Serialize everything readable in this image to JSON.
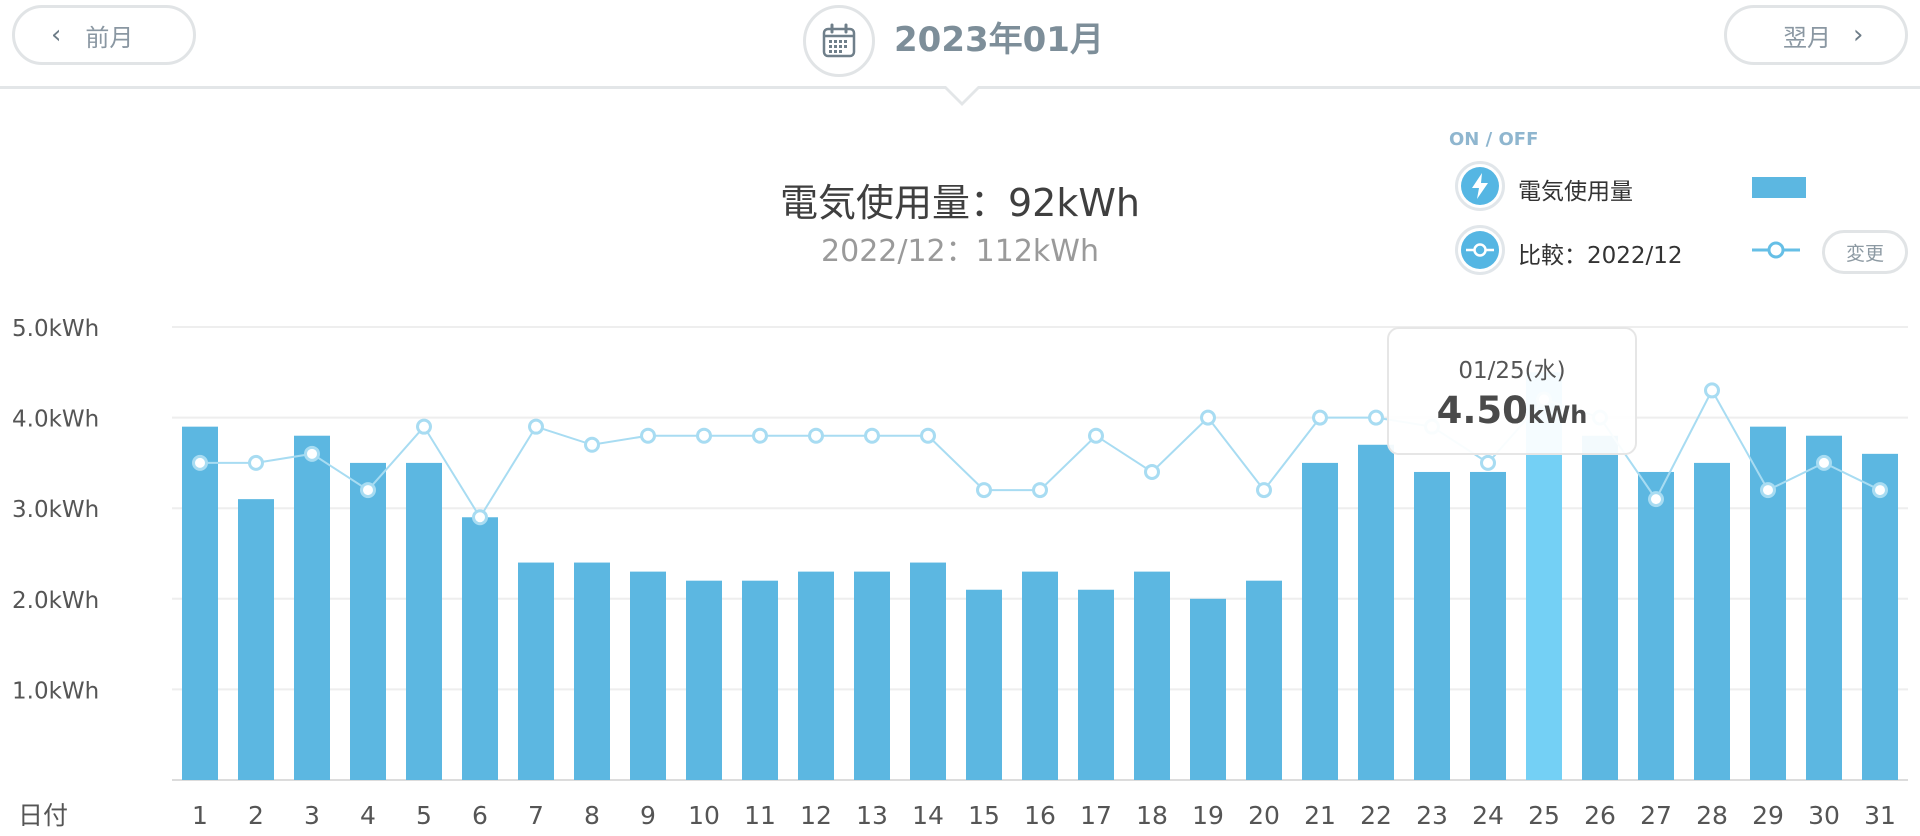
{
  "header": {
    "prev_label": "前月",
    "next_label": "翌月",
    "month_title": "2023年01月"
  },
  "summary": {
    "main": "電気使用量：92kWh",
    "compare": "2022/12：112kWh"
  },
  "legend": {
    "onoff_label": "ON / OFF",
    "usage_label": "電気使用量",
    "compare_label": "比較：2022/12",
    "change_label": "変更",
    "bar_color": "#5cb7e1",
    "line_color": "#a8dcf2"
  },
  "tooltip": {
    "date": "01/25(水)",
    "value": "4.50",
    "unit": "kWh"
  },
  "icons": {
    "calendar": "calendar-icon",
    "usage": "lightning-icon",
    "compare": "line-marker-icon"
  },
  "chart_data": {
    "type": "bar",
    "xlabel": "日付",
    "ylabel": "",
    "y_tick_labels": [
      "1.0kWh",
      "2.0kWh",
      "3.0kWh",
      "4.0kWh",
      "5.0kWh"
    ],
    "ylim": [
      0,
      5
    ],
    "categories": [
      "1",
      "2",
      "3",
      "4",
      "5",
      "6",
      "7",
      "8",
      "9",
      "10",
      "11",
      "12",
      "13",
      "14",
      "15",
      "16",
      "17",
      "18",
      "19",
      "20",
      "21",
      "22",
      "23",
      "24",
      "25",
      "26",
      "27",
      "28",
      "29",
      "30",
      "31"
    ],
    "highlight_index": 24,
    "highlight_color": "#74d0f5",
    "series": [
      {
        "type": "bar",
        "values": [
          3.9,
          3.1,
          3.8,
          3.5,
          3.5,
          2.9,
          2.4,
          2.4,
          2.3,
          2.2,
          2.2,
          2.3,
          2.3,
          2.4,
          2.1,
          2.3,
          2.1,
          2.3,
          2.0,
          2.2,
          3.5,
          3.7,
          3.4,
          3.4,
          4.5,
          3.8,
          3.4,
          3.5,
          3.9,
          3.8,
          3.6
        ]
      },
      {
        "type": "line",
        "values": [
          3.5,
          3.5,
          3.6,
          3.2,
          3.9,
          2.9,
          3.9,
          3.7,
          3.8,
          3.8,
          3.8,
          3.8,
          3.8,
          3.8,
          3.2,
          3.2,
          3.8,
          3.4,
          4.0,
          3.2,
          4.0,
          4.0,
          3.9,
          3.5,
          4.2,
          4.0,
          3.1,
          4.3,
          3.2,
          3.5,
          3.2
        ]
      }
    ]
  }
}
